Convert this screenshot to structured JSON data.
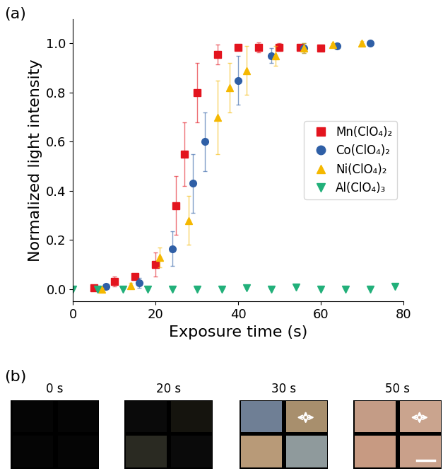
{
  "chart_data": {
    "type": "scatter",
    "title": "(a)",
    "x_label": "Exposure time (s)",
    "y_label": "Normalized light intensity",
    "xlim": [
      0,
      80
    ],
    "xticks": [
      0,
      20,
      40,
      60,
      80
    ],
    "ylim": [
      -0.05,
      1.1
    ],
    "yticks": [
      {
        "value": 0.0,
        "label": "0.0"
      },
      0.2,
      0.4,
      0.6,
      0.8,
      {
        "value": 1.0,
        "label": "1.0"
      }
    ],
    "legend": "center right",
    "series": [
      {
        "name": "Mn(ClO₄)₂",
        "color": "#e3141e",
        "marker": "square",
        "x": [
          5,
          10,
          15,
          20,
          25,
          27,
          30,
          35,
          40,
          45,
          50,
          55,
          60
        ],
        "values": [
          0.005,
          0.03,
          0.05,
          0.1,
          0.34,
          0.55,
          0.8,
          0.955,
          0.985,
          0.985,
          0.985,
          0.985,
          0.98
        ],
        "errors": [
          0.005,
          0.02,
          0.01,
          0.05,
          0.12,
          0.13,
          0.12,
          0.04,
          0.01,
          0.02,
          0.015,
          0.01,
          0.01
        ]
      },
      {
        "name": "Co(ClO₄)₂",
        "color": "#2f5fa6",
        "marker": "circle",
        "x": [
          8,
          16,
          24,
          29,
          32,
          40,
          48,
          56,
          64,
          72
        ],
        "values": [
          0.01,
          0.025,
          0.165,
          0.43,
          0.6,
          0.85,
          0.95,
          0.98,
          0.99,
          1.0
        ],
        "errors": [
          0.005,
          0.02,
          0.07,
          0.12,
          0.12,
          0.1,
          0.03,
          0.02,
          0.01,
          0.005
        ]
      },
      {
        "name": "Ni(ClO₄)₂",
        "color": "#f5b800",
        "marker": "triangle_up",
        "x": [
          7,
          14,
          21,
          28,
          35,
          38,
          42,
          49,
          56,
          63,
          70
        ],
        "values": [
          0.0,
          0.015,
          0.13,
          0.28,
          0.7,
          0.82,
          0.89,
          0.95,
          0.98,
          0.995,
          1.0
        ],
        "errors": [
          0.005,
          0.01,
          0.04,
          0.1,
          0.15,
          0.1,
          0.1,
          0.04,
          0.02,
          0.005,
          0.01
        ]
      },
      {
        "name": "Al(ClO₄)₃",
        "color": "#22b07a",
        "marker": "triangle_down",
        "x": [
          0,
          6,
          12,
          18,
          24,
          30,
          36,
          42,
          48,
          54,
          60,
          66,
          72,
          78
        ],
        "values": [
          0.0,
          0.0,
          0.0,
          0.0,
          0.0,
          0.0,
          0.0,
          0.005,
          0.0,
          0.008,
          0.0,
          0.0,
          0.0,
          0.012
        ]
      }
    ]
  },
  "images": {
    "label": "(b)",
    "frames": [
      "0 s",
      "20 s",
      "30 s",
      "50 s"
    ]
  }
}
